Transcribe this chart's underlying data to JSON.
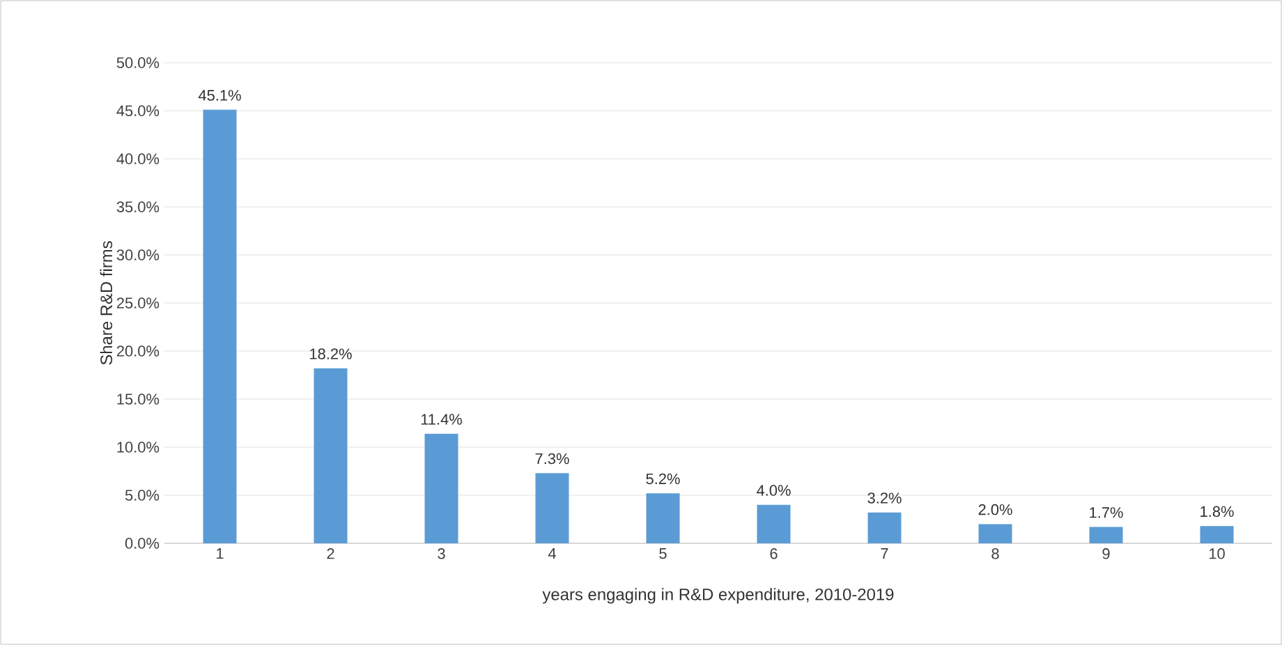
{
  "chart_data": {
    "type": "bar",
    "xlabel": "years engaging in R&D expenditure, 2010-2019",
    "ylabel": "Share R&D firms",
    "categories": [
      "1",
      "2",
      "3",
      "4",
      "5",
      "6",
      "7",
      "8",
      "9",
      "10"
    ],
    "values": [
      45.1,
      18.2,
      11.4,
      7.3,
      5.2,
      4.0,
      3.2,
      2.0,
      1.7,
      1.8
    ],
    "value_labels": [
      "45.1%",
      "18.2%",
      "11.4%",
      "7.3%",
      "5.2%",
      "4.0%",
      "3.2%",
      "2.0%",
      "1.7%",
      "1.8%"
    ],
    "color": "#5b9bd5",
    "ylim": [
      0,
      50
    ],
    "yticks": [
      {
        "value": 0,
        "label": "0.0%"
      },
      {
        "value": 5,
        "label": "5.0%"
      },
      {
        "value": 10,
        "label": "10.0%"
      },
      {
        "value": 15,
        "label": "15.0%"
      },
      {
        "value": 20,
        "label": "20.0%"
      },
      {
        "value": 25,
        "label": "25.0%"
      },
      {
        "value": 30,
        "label": "30.0%"
      },
      {
        "value": 35,
        "label": "35.0%"
      },
      {
        "value": 40,
        "label": "40.0%"
      },
      {
        "value": 45,
        "label": "45.0%"
      },
      {
        "value": 50,
        "label": "50.0%"
      }
    ],
    "grid": "y"
  }
}
